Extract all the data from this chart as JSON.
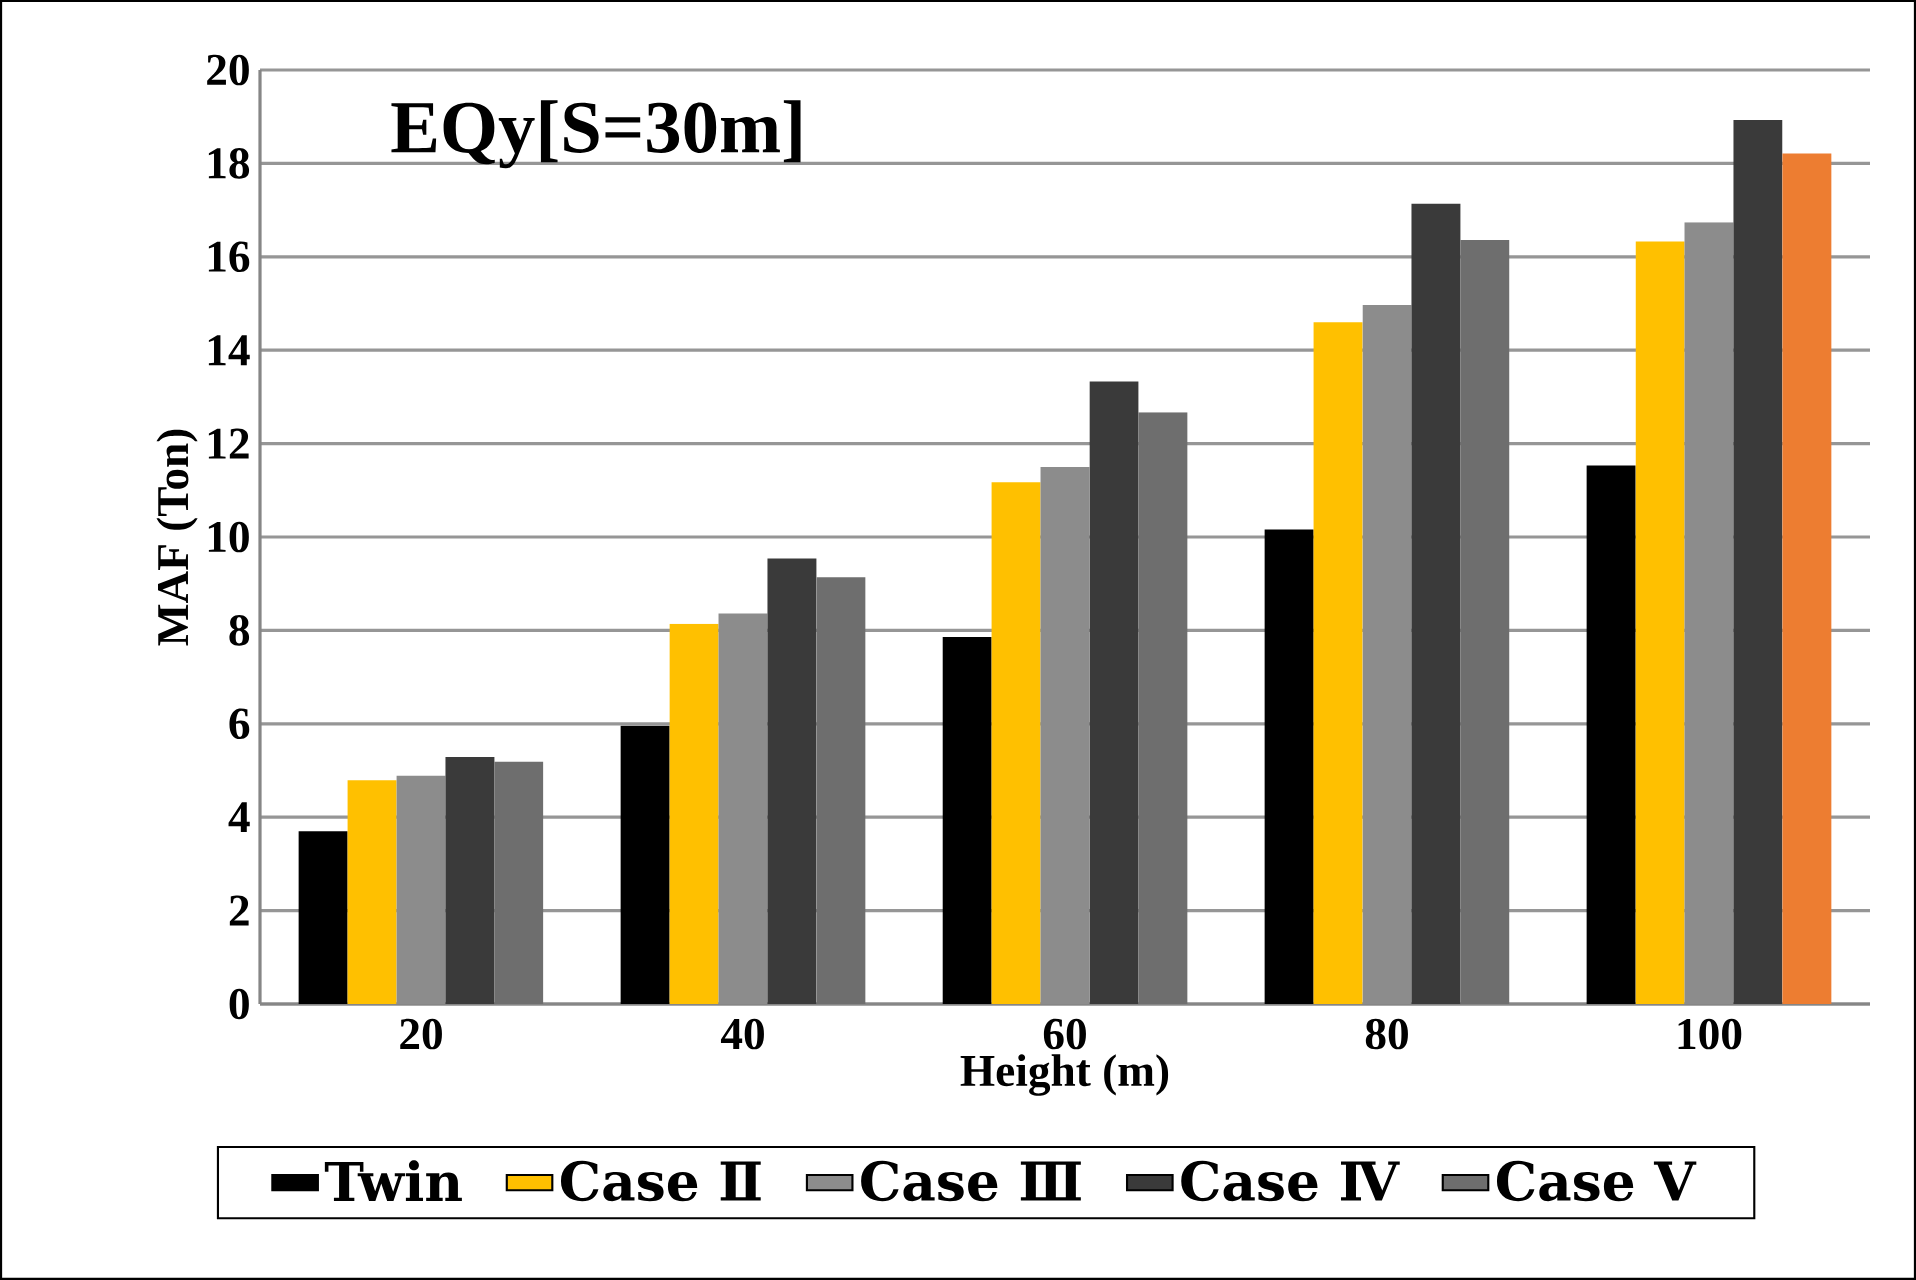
{
  "chart_data": {
    "type": "bar",
    "title": "EQy[S=30m]",
    "xlabel": "Height (m)",
    "ylabel": "MAF (Ton)",
    "categories": [
      "20",
      "40",
      "60",
      "80",
      "100"
    ],
    "series": [
      {
        "name": "Twin",
        "color": "#000000",
        "values": [
          3.7,
          5.96,
          7.86,
          10.16,
          11.53
        ]
      },
      {
        "name": "Case Ⅱ",
        "color": "#ffc000",
        "values": [
          4.79,
          8.14,
          11.17,
          14.6,
          16.33
        ]
      },
      {
        "name": "Case Ⅲ",
        "color": "#8c8c8c",
        "values": [
          4.89,
          8.36,
          11.5,
          14.97,
          16.74
        ]
      },
      {
        "name": "Case Ⅳ",
        "color": "#3a3a3a",
        "values": [
          5.29,
          9.54,
          13.33,
          17.14,
          18.93
        ]
      },
      {
        "name": "Case Ⅴ",
        "colors": [
          "#6e6e6e",
          "#6e6e6e",
          "#6e6e6e",
          "#6e6e6e",
          "#ed7d31"
        ],
        "values": [
          5.19,
          9.14,
          12.67,
          16.36,
          18.21
        ]
      }
    ],
    "ylim": [
      0,
      20
    ],
    "yticks": [
      0,
      2,
      4,
      6,
      8,
      10,
      12,
      14,
      16,
      18,
      20
    ],
    "grid": "y",
    "legend": "bottom"
  }
}
